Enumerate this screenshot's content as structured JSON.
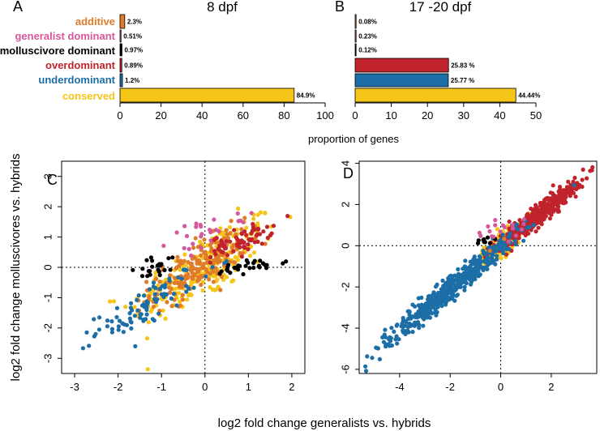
{
  "chart_data": [
    {
      "type": "bar",
      "orientation": "horizontal",
      "panel": "A",
      "title": "8 dpf",
      "xlim": [
        0,
        100
      ],
      "xticks": [
        0,
        20,
        40,
        60,
        80,
        100
      ],
      "categories": [
        "additive",
        "generalist dominant",
        "molluscivore dominant",
        "overdominant",
        "underdominant",
        "conserved"
      ],
      "values": [
        2.3,
        0.51,
        0.97,
        0.89,
        1.2,
        84.9
      ],
      "value_labels": [
        "2.3%",
        "0.51%",
        "0.97%",
        "0.89%",
        "1.2%",
        "84.9%"
      ]
    },
    {
      "type": "bar",
      "orientation": "horizontal",
      "panel": "B",
      "title": "17 -20 dpf",
      "xlim": [
        0,
        50
      ],
      "xticks": [
        0,
        10,
        20,
        30,
        40,
        50
      ],
      "categories": [
        "additive",
        "generalist dominant",
        "molluscivore dominant",
        "overdominant",
        "underdominant",
        "conserved"
      ],
      "values": [
        0.08,
        0.23,
        0.12,
        25.83,
        25.77,
        44.44
      ],
      "value_labels": [
        "0.08%",
        "0.23%",
        "0.12%",
        "25.83 %",
        "25.77 %",
        "44.44%"
      ]
    },
    {
      "type": "scatter",
      "panel": "C",
      "xlim": [
        -3.3,
        2.3
      ],
      "ylim": [
        -3.5,
        3.5
      ],
      "xticks": [
        -3,
        -2,
        -1,
        0,
        1,
        2
      ],
      "yticks": [
        -3,
        -2,
        -1,
        0,
        1,
        2,
        3
      ],
      "reference_lines": {
        "x": 0,
        "y": 0
      },
      "series": [
        {
          "name": "conserved",
          "clusters": [
            {
              "cx": 0.0,
              "cy": 0.0,
              "slope": 0.8,
              "spread": 0.85,
              "width": 0.55,
              "n": 230
            }
          ]
        },
        {
          "name": "additive",
          "clusters": [
            {
              "cx": -0.15,
              "cy": 0.0,
              "slope": 0.8,
              "spread": 0.55,
              "width": 0.4,
              "n": 200
            }
          ]
        },
        {
          "name": "generalist dominant",
          "clusters": [
            {
              "cx": 0.1,
              "cy": 1.1,
              "slope": 0.2,
              "spread": 0.45,
              "width": 0.25,
              "n": 28
            }
          ]
        },
        {
          "name": "molluscivore dominant",
          "clusters": [
            {
              "cx": -1.1,
              "cy": 0.0,
              "slope": 0.4,
              "spread": 0.35,
              "width": 0.18,
              "n": 22
            },
            {
              "cx": 1.0,
              "cy": 0.0,
              "slope": 0.2,
              "spread": 0.45,
              "width": 0.12,
              "n": 30
            }
          ]
        },
        {
          "name": "overdominant",
          "clusters": [
            {
              "cx": 0.85,
              "cy": 0.9,
              "slope": 0.5,
              "spread": 0.35,
              "width": 0.2,
              "n": 70
            }
          ]
        },
        {
          "name": "underdominant",
          "clusters": [
            {
              "cx": -1.3,
              "cy": -1.2,
              "slope": 0.8,
              "spread": 0.6,
              "width": 0.3,
              "n": 90
            }
          ]
        }
      ]
    },
    {
      "type": "scatter",
      "panel": "D",
      "xlim": [
        -5.6,
        3.8
      ],
      "ylim": [
        -6.2,
        4.1
      ],
      "xticks": [
        -4,
        -2,
        0,
        2
      ],
      "yticks": [
        -6,
        -4,
        -2,
        0,
        2,
        4
      ],
      "reference_lines": {
        "x": 0,
        "y": 0
      },
      "series": [
        {
          "name": "conserved",
          "clusters": [
            {
              "cx": 0.0,
              "cy": 0.0,
              "slope": 0.9,
              "spread": 0.5,
              "width": 0.3,
              "n": 150
            }
          ]
        },
        {
          "name": "overdominant",
          "clusters": [
            {
              "cx": 1.5,
              "cy": 1.5,
              "slope": 0.95,
              "spread": 0.9,
              "width": 0.25,
              "n": 420
            }
          ]
        },
        {
          "name": "underdominant",
          "clusters": [
            {
              "cx": -2.0,
              "cy": -2.1,
              "slope": 1.0,
              "spread": 1.3,
              "width": 0.3,
              "n": 520
            }
          ]
        },
        {
          "name": "molluscivore dominant",
          "clusters": [
            {
              "cx": -0.65,
              "cy": 0.3,
              "slope": 0.3,
              "spread": 0.2,
              "width": 0.1,
              "n": 9
            }
          ]
        },
        {
          "name": "generalist dominant",
          "clusters": [
            {
              "cx": 0.1,
              "cy": 0.9,
              "slope": 0.3,
              "spread": 0.5,
              "width": 0.25,
              "n": 18
            }
          ]
        },
        {
          "name": "additive",
          "clusters": [
            {
              "cx": 0.0,
              "cy": 0.0,
              "slope": 1.0,
              "spread": 0.2,
              "width": 0.1,
              "n": 2
            }
          ]
        }
      ]
    }
  ],
  "colors": {
    "additive": "#e07b2a",
    "generalist dominant": "#d6589c",
    "molluscivore dominant": "#000000",
    "overdominant": "#c0232c",
    "underdominant": "#1c6ea6",
    "conserved": "#f5c518"
  },
  "labels": {
    "panel_a_letter": "A",
    "panel_b_letter": "B",
    "panel_c_letter": "C",
    "panel_d_letter": "D",
    "bar_xlabel": "proportion of genes",
    "scatter_xlabel": "log2 fold change generalists vs. hybrids",
    "scatter_ylabel": "log2 fold change molluscivores vs. hybrids"
  }
}
